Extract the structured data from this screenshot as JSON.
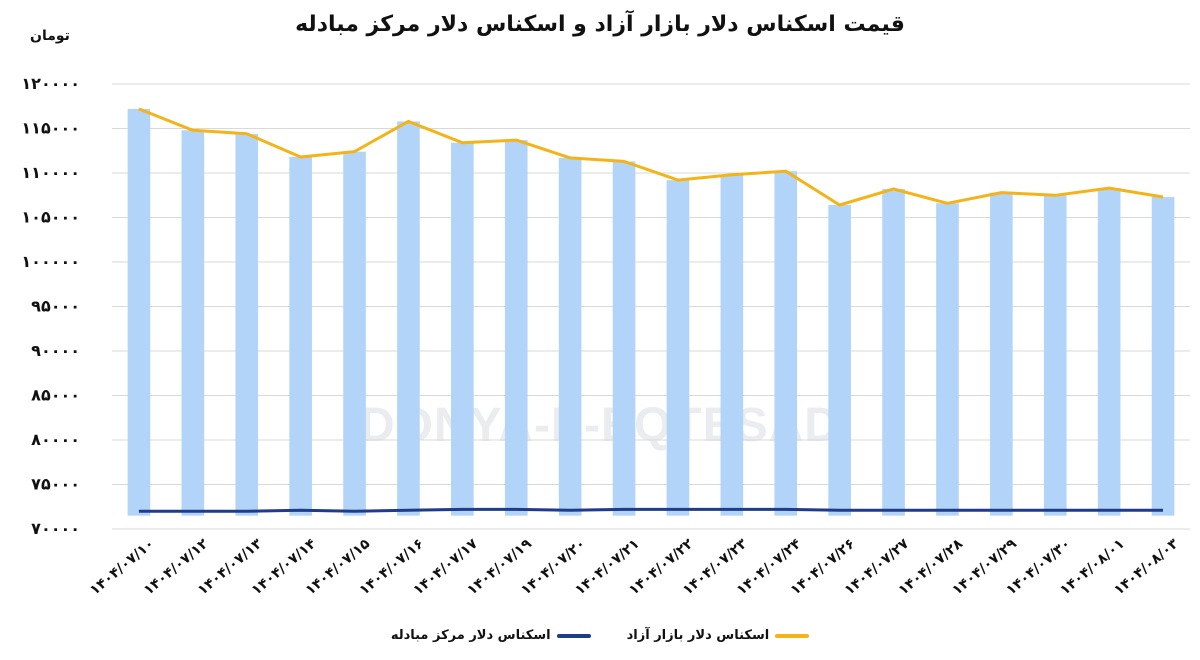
{
  "chart_data": {
    "type": "bar",
    "title": "قیمت اسکناس دلار بازار آزاد و اسکناس دلار مرکز مبادله",
    "unit_label": "تومان",
    "ylim": [
      70000,
      120000
    ],
    "yticks": [
      70000,
      75000,
      80000,
      85000,
      90000,
      95000,
      100000,
      105000,
      110000,
      115000,
      120000
    ],
    "ytick_labels": [
      "۷۰۰۰۰",
      "۷۵۰۰۰",
      "۸۰۰۰۰",
      "۸۵۰۰۰",
      "۹۰۰۰۰",
      "۹۵۰۰۰",
      "۱۰۰۰۰۰",
      "۱۰۵۰۰۰",
      "۱۱۰۰۰۰",
      "۱۱۵۰۰۰",
      "۱۲۰۰۰۰"
    ],
    "grid": true,
    "legend_position": "bottom",
    "categories": [
      "۱۴۰۴/۰۷/۱۰",
      "۱۴۰۴/۰۷/۱۲",
      "۱۴۰۴/۰۷/۱۳",
      "۱۴۰۴/۰۷/۱۴",
      "۱۴۰۴/۰۷/۱۵",
      "۱۴۰۴/۰۷/۱۶",
      "۱۴۰۴/۰۷/۱۷",
      "۱۴۰۴/۰۷/۱۹",
      "۱۴۰۴/۰۷/۲۰",
      "۱۴۰۴/۰۷/۲۱",
      "۱۴۰۴/۰۷/۲۲",
      "۱۴۰۴/۰۷/۲۳",
      "۱۴۰۴/۰۷/۲۴",
      "۱۴۰۴/۰۷/۲۶",
      "۱۴۰۴/۰۷/۲۷",
      "۱۴۰۴/۰۷/۲۸",
      "۱۴۰۴/۰۷/۲۹",
      "۱۴۰۴/۰۷/۳۰",
      "۱۴۰۴/۰۸/۰۱",
      "۱۴۰۴/۰۸/۰۳"
    ],
    "series": [
      {
        "name": "اسکناس دلار بازار آزاد",
        "color": "#f2b418",
        "bar_color": "#b3d4f9",
        "values": [
          117200,
          114800,
          114400,
          111800,
          112400,
          115800,
          113400,
          113700,
          111700,
          111300,
          109200,
          109800,
          110200,
          106400,
          108200,
          106600,
          107800,
          107500,
          108300,
          107300
        ]
      },
      {
        "name": "اسکناس دلار مرکز مبادله",
        "color": "#1f3c8a",
        "values": [
          72000,
          72000,
          72000,
          72100,
          72000,
          72100,
          72200,
          72200,
          72100,
          72200,
          72200,
          72200,
          72200,
          72100,
          72100,
          72100,
          72100,
          72100,
          72100,
          72100
        ]
      }
    ]
  },
  "watermark": "DONYA-E-EQTESAD"
}
